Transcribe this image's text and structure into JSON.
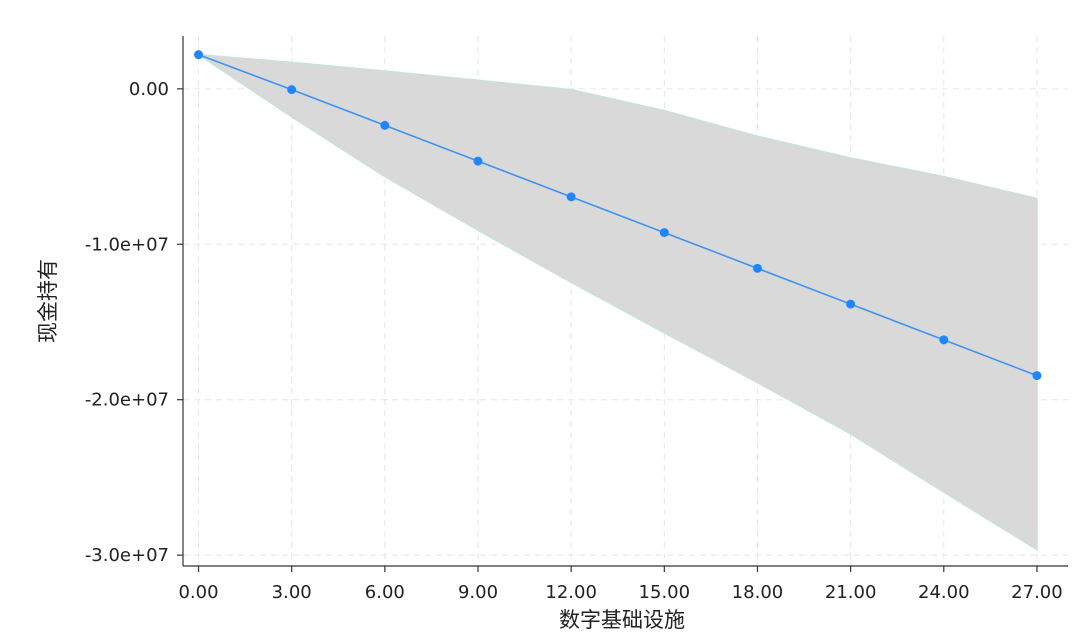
{
  "chart_data": {
    "type": "line",
    "xlabel": "数字基础设施",
    "ylabel": "现金持有",
    "x": [
      0,
      3,
      6,
      9,
      12,
      15,
      18,
      21,
      24,
      27
    ],
    "series": [
      {
        "values": [
          2200000,
          -50000,
          -2350000,
          -4650000,
          -6950000,
          -9250000,
          -11550000,
          -13850000,
          -16150000,
          -18450000
        ],
        "ci_upper": [
          2200000,
          1700000,
          1150000,
          550000,
          -50000,
          -1400000,
          -3050000,
          -4450000,
          -5650000,
          -7050000
        ],
        "ci_lower": [
          2200000,
          -1800000,
          -5650000,
          -9100000,
          -12450000,
          -15700000,
          -18900000,
          -22200000,
          -25950000,
          -29650000
        ]
      }
    ],
    "xticks": [
      "0.00",
      "3.00",
      "6.00",
      "9.00",
      "12.00",
      "15.00",
      "18.00",
      "21.00",
      "24.00",
      "27.00"
    ],
    "yticks": [
      "0.00",
      "-1.0e+07",
      "-2.0e+07",
      "-3.0e+07"
    ],
    "ytick_values": [
      0,
      -10000000,
      -20000000,
      -30000000
    ],
    "xlim": [
      -0.5,
      28.0
    ],
    "ylim": [
      -30700000,
      3400000
    ],
    "grid": true,
    "colors": {
      "line": "#3f93f0",
      "marker": "#1f86ff",
      "band": "#d9d9d9",
      "band_edge": "#c8e0e0",
      "grid": "#e6e6e6",
      "axis": "#333333"
    }
  }
}
